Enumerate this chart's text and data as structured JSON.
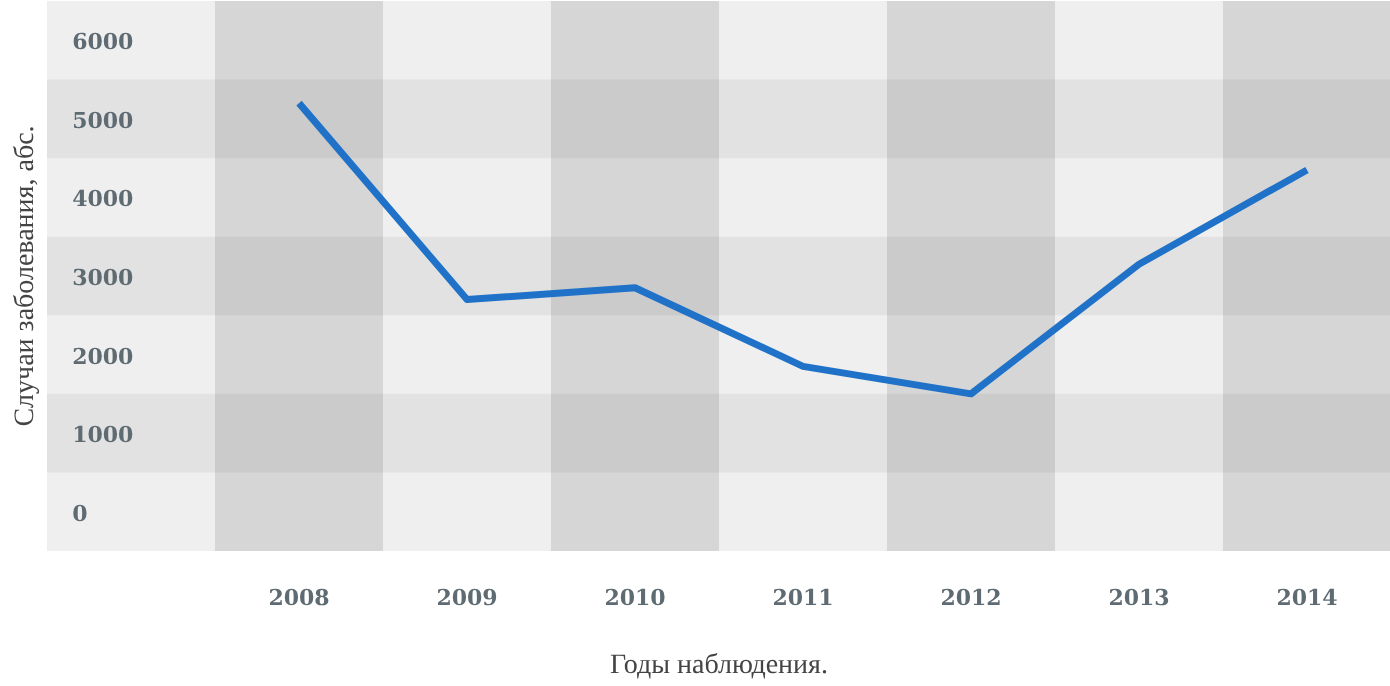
{
  "chart_data": {
    "type": "line",
    "xlabel": "Годы наблюдения.",
    "ylabel": "Случаи заболевания, абс.",
    "categories": [
      null,
      "2008",
      "2009",
      "2010",
      "2011",
      "2012",
      "2013",
      "2014"
    ],
    "values": [
      null,
      5200,
      2700,
      2850,
      1850,
      1500,
      3150,
      4350
    ],
    "color": "#1f72c8",
    "ylim": [
      -500,
      6500
    ],
    "yticks": [
      0,
      1000,
      2000,
      3000,
      4000,
      5000,
      6000
    ],
    "bands": [
      {
        "axis": "x",
        "from": "2008",
        "to": "2008",
        "color": "#d6d6d6"
      },
      {
        "axis": "x",
        "from": "2010",
        "to": "2010",
        "color": "#d6d6d6"
      },
      {
        "axis": "x",
        "from": "2012",
        "to": "2012",
        "color": "#d6d6d6"
      },
      {
        "axis": "x",
        "from": "2014",
        "to": "2014",
        "color": "#d6d6d6"
      },
      {
        "axis": "y",
        "from": 500,
        "to": 1500,
        "color": "#000000"
      },
      {
        "axis": "y",
        "from": 2500,
        "to": 3500,
        "color": "#000000"
      },
      {
        "axis": "y",
        "from": 4500,
        "to": 5500,
        "color": "#000000"
      }
    ]
  }
}
